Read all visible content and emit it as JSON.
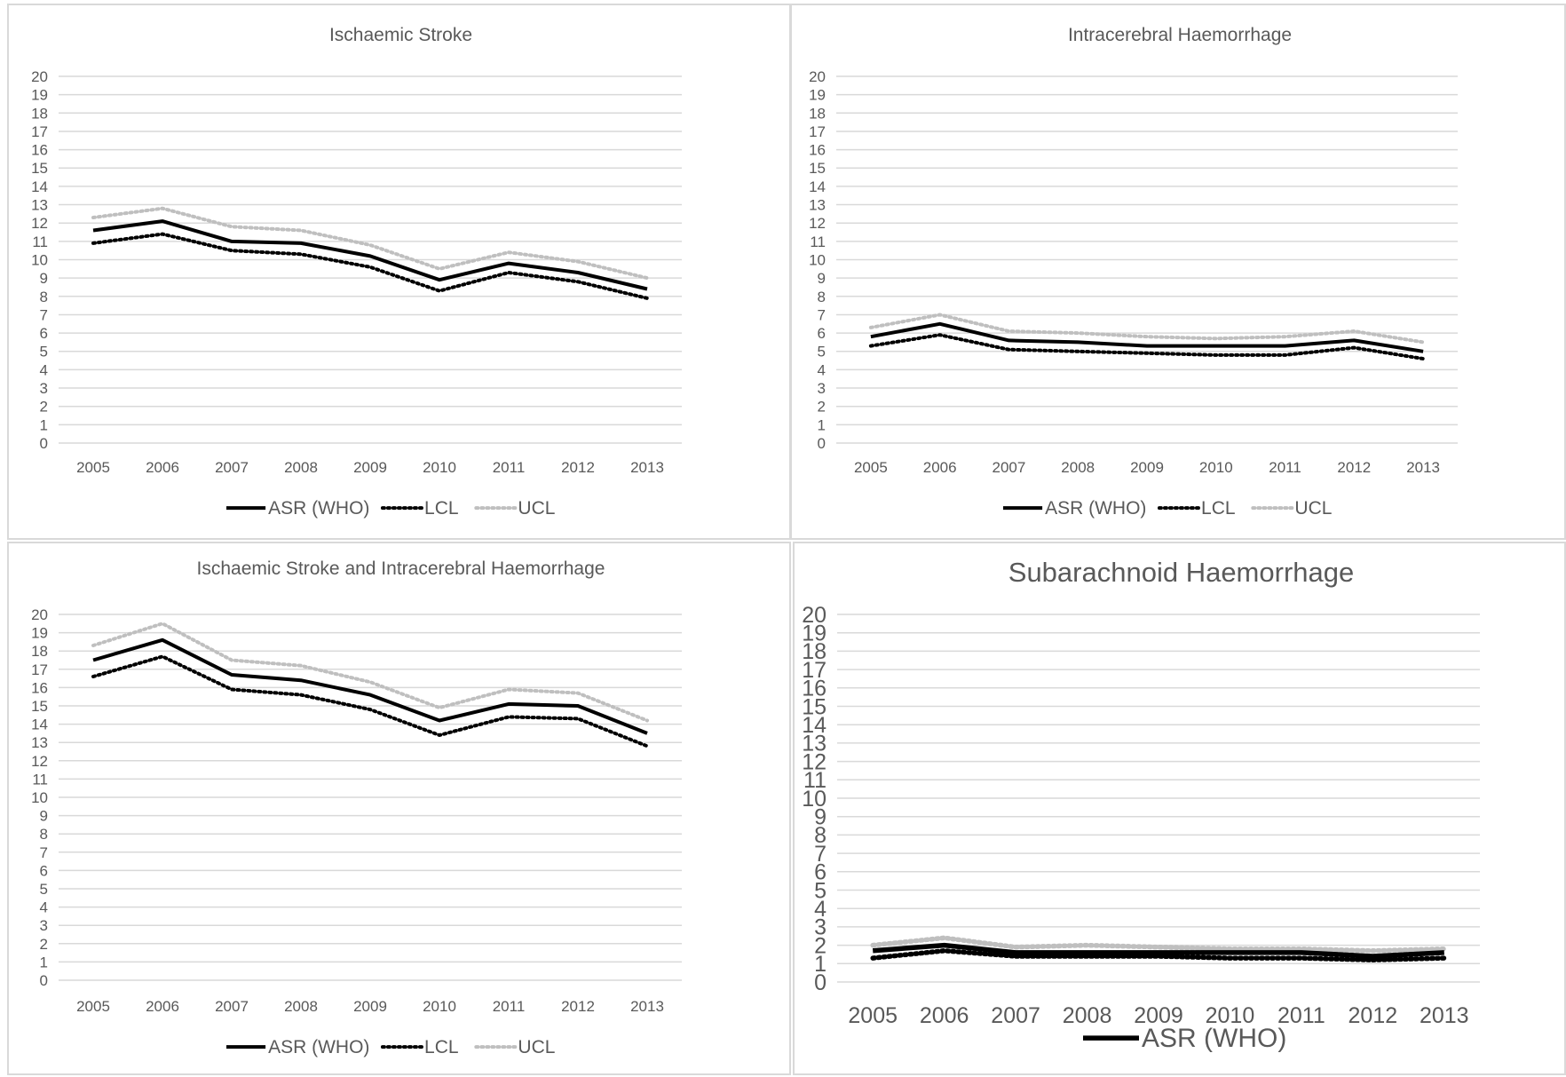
{
  "colors": {
    "asr": "#000000",
    "lcl": "#000000",
    "ucl": "#bfbfbf",
    "grid": "#d9d9d9",
    "text": "#595959",
    "border": "#d9d9d9"
  },
  "chart_data": [
    {
      "type": "line",
      "title": "Ischaemic Stroke",
      "categories": [
        "2005",
        "2006",
        "2007",
        "2008",
        "2009",
        "2010",
        "2011",
        "2012",
        "2013"
      ],
      "y_ticks": [
        "0",
        "1",
        "2",
        "3",
        "4",
        "5",
        "6",
        "7",
        "8",
        "9",
        "10",
        "11",
        "12",
        "13",
        "14",
        "15",
        "16",
        "17",
        "18",
        "19",
        "20"
      ],
      "ylim": [
        0,
        20
      ],
      "grid": true,
      "legend_position": "bottom",
      "legend": [
        "ASR (WHO)",
        "LCL",
        "UCL"
      ],
      "series": [
        {
          "name": "ASR (WHO)",
          "style": "solid",
          "values": [
            11.6,
            12.1,
            11.0,
            10.9,
            10.2,
            8.9,
            9.8,
            9.3,
            8.4
          ]
        },
        {
          "name": "LCL",
          "style": "dotted",
          "values": [
            10.9,
            11.4,
            10.5,
            10.3,
            9.6,
            8.3,
            9.3,
            8.8,
            7.9
          ]
        },
        {
          "name": "UCL",
          "style": "dotted-grey",
          "values": [
            12.3,
            12.8,
            11.8,
            11.6,
            10.8,
            9.5,
            10.4,
            9.9,
            9.0
          ]
        }
      ]
    },
    {
      "type": "line",
      "title": "Intracerebral Haemorrhage",
      "categories": [
        "2005",
        "2006",
        "2007",
        "2008",
        "2009",
        "2010",
        "2011",
        "2012",
        "2013"
      ],
      "y_ticks": [
        "0",
        "1",
        "2",
        "3",
        "4",
        "5",
        "6",
        "7",
        "8",
        "9",
        "10",
        "11",
        "12",
        "13",
        "14",
        "15",
        "16",
        "17",
        "18",
        "19",
        "20"
      ],
      "ylim": [
        0,
        20
      ],
      "grid": true,
      "legend_position": "bottom",
      "legend": [
        "ASR (WHO)",
        "LCL",
        "UCL"
      ],
      "series": [
        {
          "name": "ASR (WHO)",
          "style": "solid",
          "values": [
            5.8,
            6.5,
            5.6,
            5.5,
            5.3,
            5.3,
            5.3,
            5.6,
            5.0
          ]
        },
        {
          "name": "LCL",
          "style": "dotted",
          "values": [
            5.3,
            5.9,
            5.1,
            5.0,
            4.9,
            4.8,
            4.8,
            5.2,
            4.6
          ]
        },
        {
          "name": "UCL",
          "style": "dotted-grey",
          "values": [
            6.3,
            7.0,
            6.1,
            6.0,
            5.8,
            5.7,
            5.8,
            6.1,
            5.5
          ]
        }
      ]
    },
    {
      "type": "line",
      "title": "Ischaemic Stroke and Intracerebral Haemorrhage",
      "categories": [
        "2005",
        "2006",
        "2007",
        "2008",
        "2009",
        "2010",
        "2011",
        "2012",
        "2013"
      ],
      "y_ticks": [
        "0",
        "1",
        "2",
        "3",
        "4",
        "5",
        "6",
        "7",
        "8",
        "9",
        "10",
        "11",
        "12",
        "13",
        "14",
        "15",
        "16",
        "17",
        "18",
        "19",
        "20"
      ],
      "ylim": [
        0,
        20
      ],
      "grid": true,
      "legend_position": "bottom",
      "legend": [
        "ASR (WHO)",
        "LCL",
        "UCL"
      ],
      "series": [
        {
          "name": "ASR (WHO)",
          "style": "solid",
          "values": [
            17.5,
            18.6,
            16.7,
            16.4,
            15.6,
            14.2,
            15.1,
            15.0,
            13.5
          ]
        },
        {
          "name": "LCL",
          "style": "dotted",
          "values": [
            16.6,
            17.7,
            15.9,
            15.6,
            14.8,
            13.4,
            14.4,
            14.3,
            12.8
          ]
        },
        {
          "name": "UCL",
          "style": "dotted-grey",
          "values": [
            18.3,
            19.5,
            17.5,
            17.2,
            16.3,
            14.9,
            15.9,
            15.7,
            14.2
          ]
        }
      ]
    },
    {
      "type": "line",
      "title": "Subarachnoid Haemorrhage",
      "categories": [
        "2005",
        "2006",
        "2007",
        "2008",
        "2009",
        "2010",
        "2011",
        "2012",
        "2013"
      ],
      "y_ticks": [
        "0",
        "1",
        "2",
        "3",
        "4",
        "5",
        "6",
        "7",
        "8",
        "9",
        "10",
        "11",
        "12",
        "13",
        "14",
        "15",
        "16",
        "17",
        "18",
        "19",
        "20"
      ],
      "ylim": [
        0,
        20
      ],
      "grid": true,
      "legend_position": "bottom",
      "legend": [
        "ASR (WHO)"
      ],
      "series": [
        {
          "name": "ASR (WHO)",
          "style": "solid",
          "values": [
            1.7,
            2.0,
            1.6,
            1.6,
            1.6,
            1.6,
            1.6,
            1.4,
            1.6
          ]
        },
        {
          "name": "LCL",
          "style": "dotted",
          "values": [
            1.3,
            1.7,
            1.4,
            1.4,
            1.4,
            1.3,
            1.3,
            1.2,
            1.3
          ]
        },
        {
          "name": "UCL",
          "style": "dotted-grey",
          "values": [
            2.0,
            2.4,
            1.9,
            2.0,
            1.9,
            1.8,
            1.8,
            1.7,
            1.8
          ]
        }
      ]
    }
  ]
}
